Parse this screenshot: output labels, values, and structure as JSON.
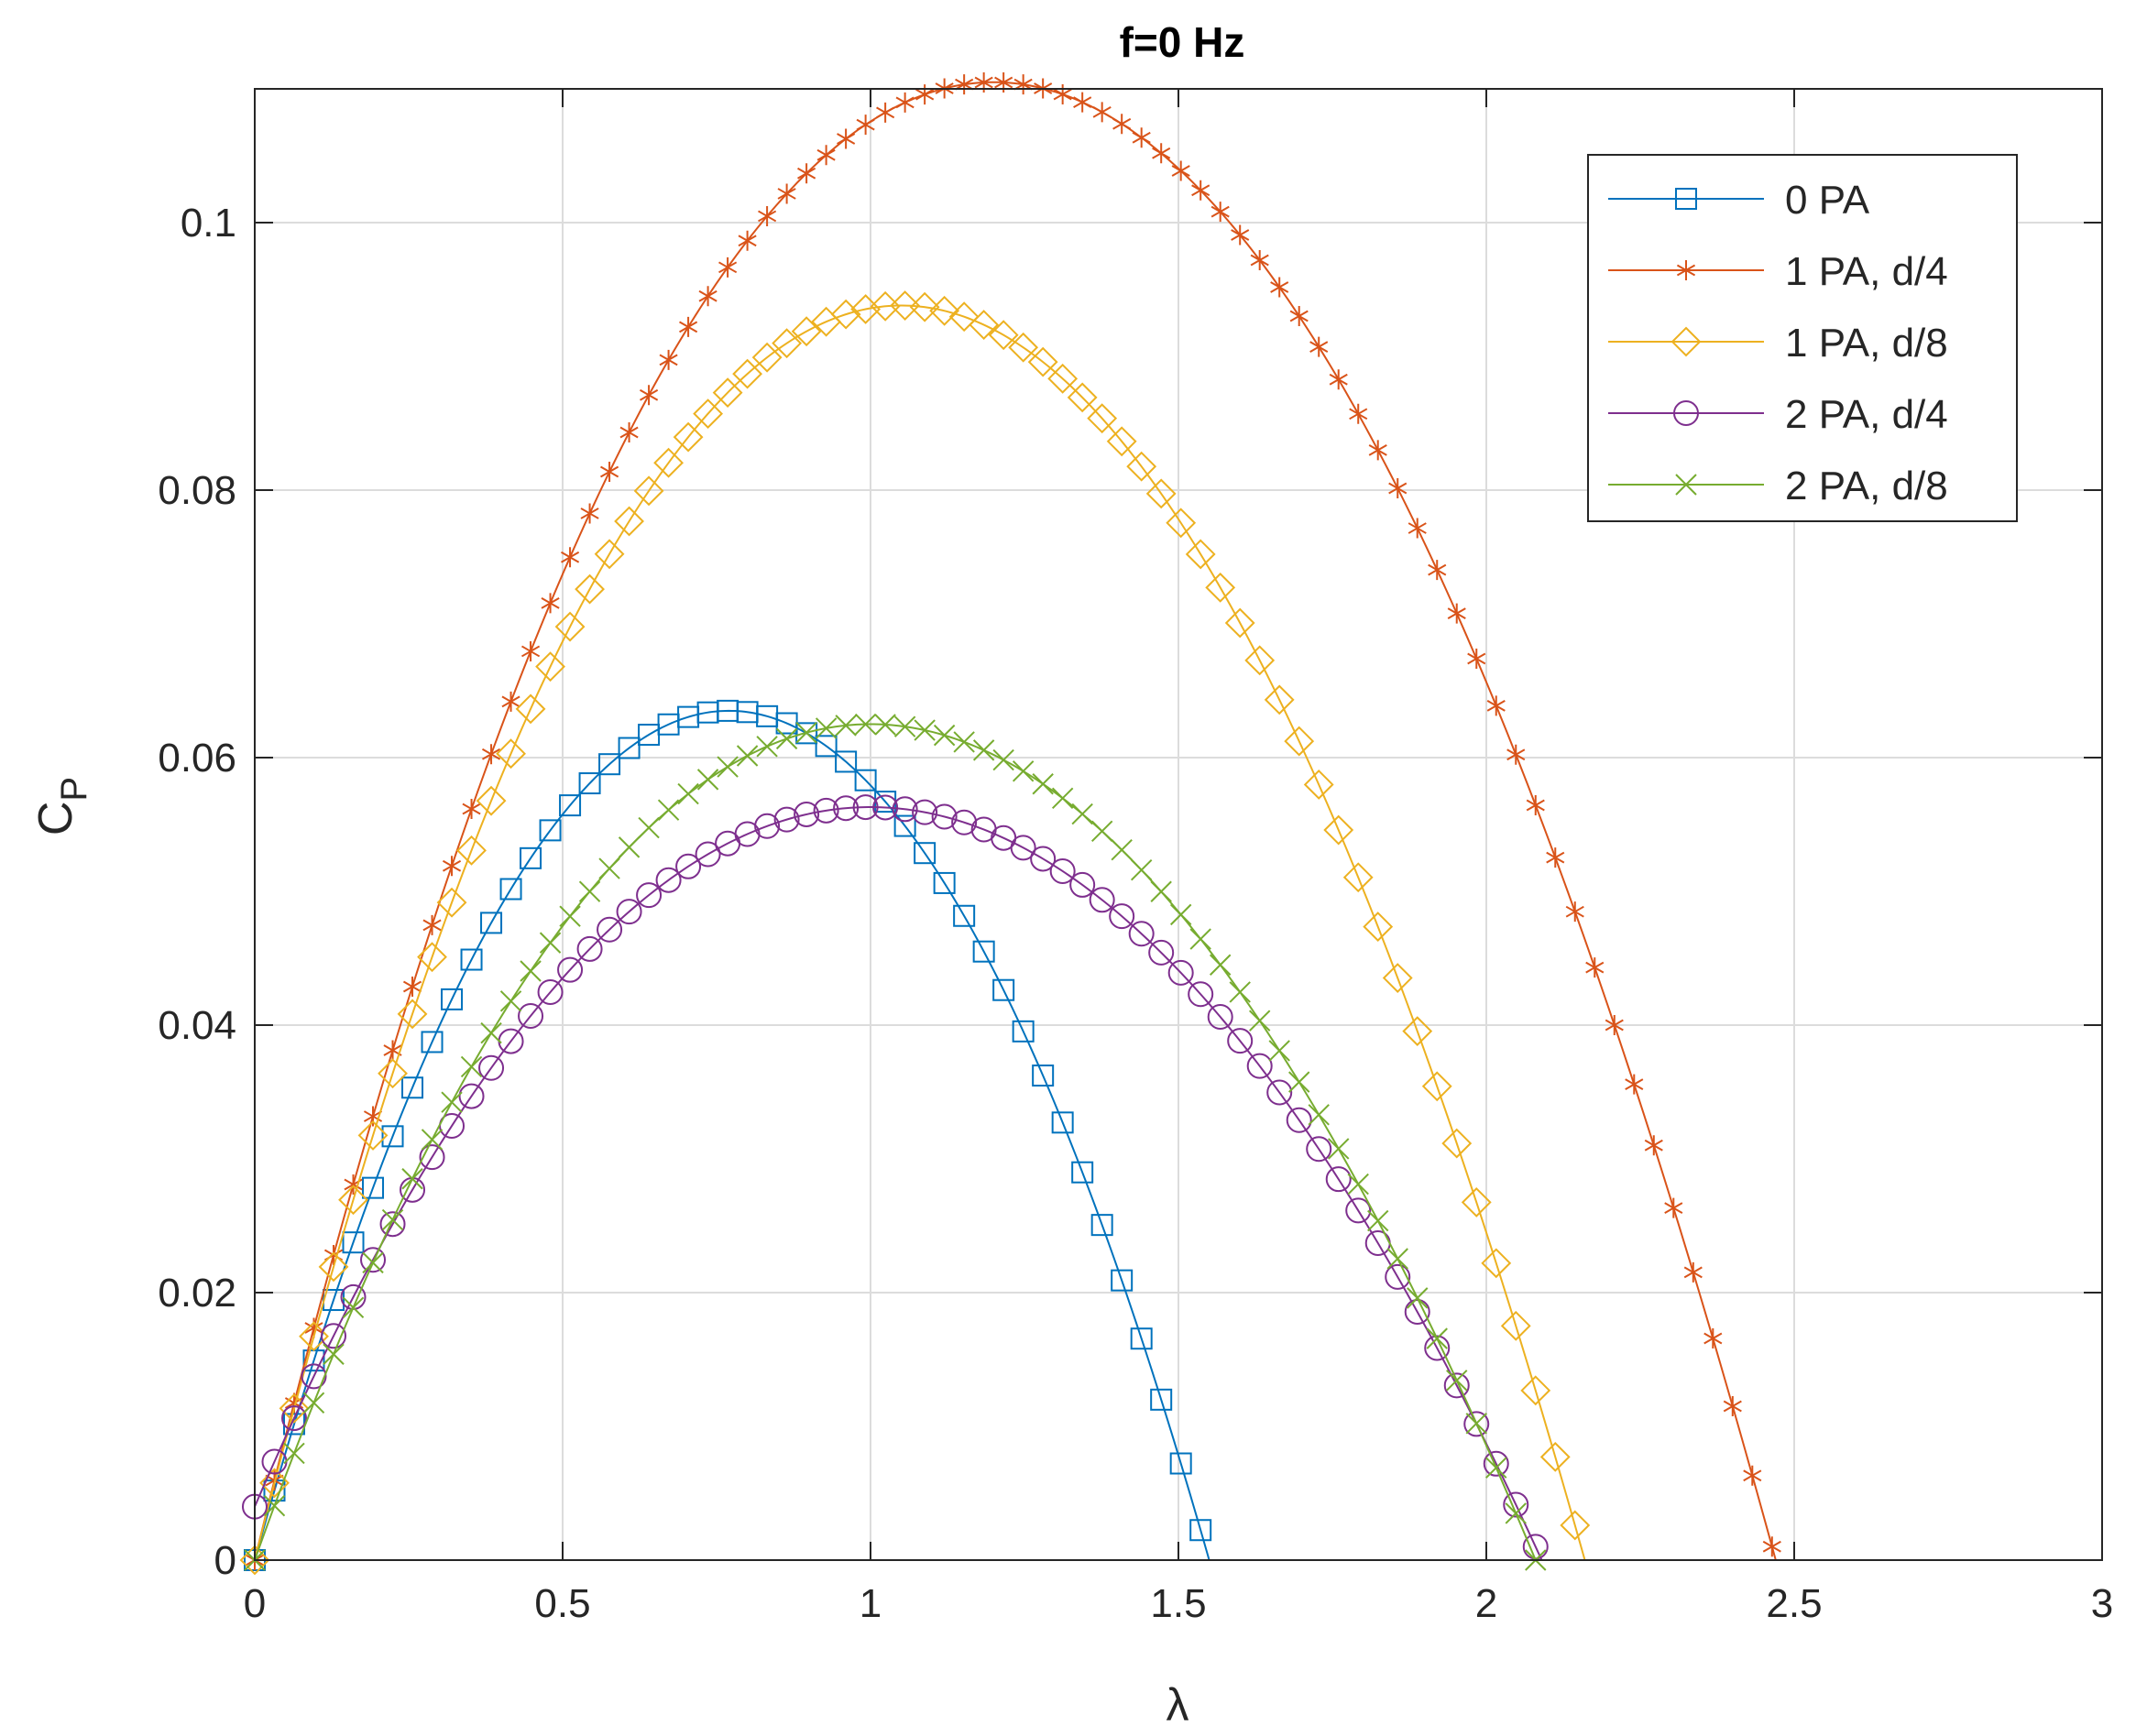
{
  "chart_data": {
    "type": "line",
    "title": "f=0 Hz",
    "xlabel": "λ",
    "ylabel_main": "C",
    "ylabel_sub": "P",
    "xlim": [
      0,
      3
    ],
    "ylim": [
      0,
      0.11
    ],
    "grid": true,
    "x_ticks": [
      0,
      0.5,
      1,
      1.5,
      2,
      2.5,
      3
    ],
    "x_tick_labels": [
      "0",
      "0.5",
      "1",
      "1.5",
      "2",
      "2.5",
      "3"
    ],
    "y_ticks": [
      0,
      0.02,
      0.04,
      0.06,
      0.08,
      0.1
    ],
    "y_tick_labels": [
      "0",
      "0.02",
      "0.04",
      "0.06",
      "0.08",
      "0.1"
    ],
    "legend_position": "top-right",
    "series": [
      {
        "name": "0 PA",
        "color": "#0072BD",
        "marker": "square",
        "x_max": 1.55,
        "peak_x": 0.77,
        "peak_y": 0.0635,
        "start_y": 0.0,
        "marker_step": 0.032
      },
      {
        "name": "1 PA, d/4",
        "color": "#D95319",
        "marker": "asterisk",
        "x_max": 2.47,
        "peak_x": 1.2,
        "peak_y": 0.1105,
        "start_y": 0.0,
        "marker_step": 0.032
      },
      {
        "name": "1 PA, d/8",
        "color": "#EDB120",
        "marker": "diamond",
        "x_max": 2.16,
        "peak_x": 1.05,
        "peak_y": 0.0938,
        "start_y": 0.0,
        "marker_step": 0.032
      },
      {
        "name": "2 PA, d/4",
        "color": "#7E2F8E",
        "marker": "circle",
        "x_max": 2.09,
        "peak_x": 1.0,
        "peak_y": 0.0563,
        "start_y": 0.004,
        "marker_step": 0.032
      },
      {
        "name": "2 PA, d/8",
        "color": "#77AC30",
        "marker": "cross",
        "x_max": 2.08,
        "peak_x": 1.0,
        "peak_y": 0.0625,
        "start_y": 0.0,
        "marker_step": 0.032
      }
    ]
  }
}
